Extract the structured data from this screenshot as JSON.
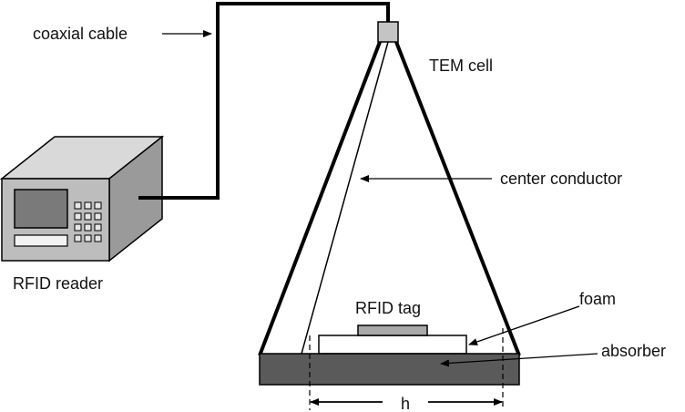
{
  "labels": {
    "coaxial_cable": "coaxial cable",
    "tem_cell": "TEM cell",
    "center_conductor": "center conductor",
    "rfid_reader": "RFID reader",
    "rfid_tag": "RFID tag",
    "foam": "foam",
    "absorber": "absorber",
    "dimension_h": "h"
  },
  "colors": {
    "line": "#000000",
    "absorber": "#5a5a5a",
    "tag": "#a9a9a9",
    "connector": "#c4c4c4",
    "foam": "#ffffff",
    "reader_front": "#bdbdbd",
    "reader_top": "#d9d9d9",
    "reader_side": "#9a9a9a",
    "reader_screen": "#7a7a7a",
    "reader_keys": "#e6e6e6"
  }
}
